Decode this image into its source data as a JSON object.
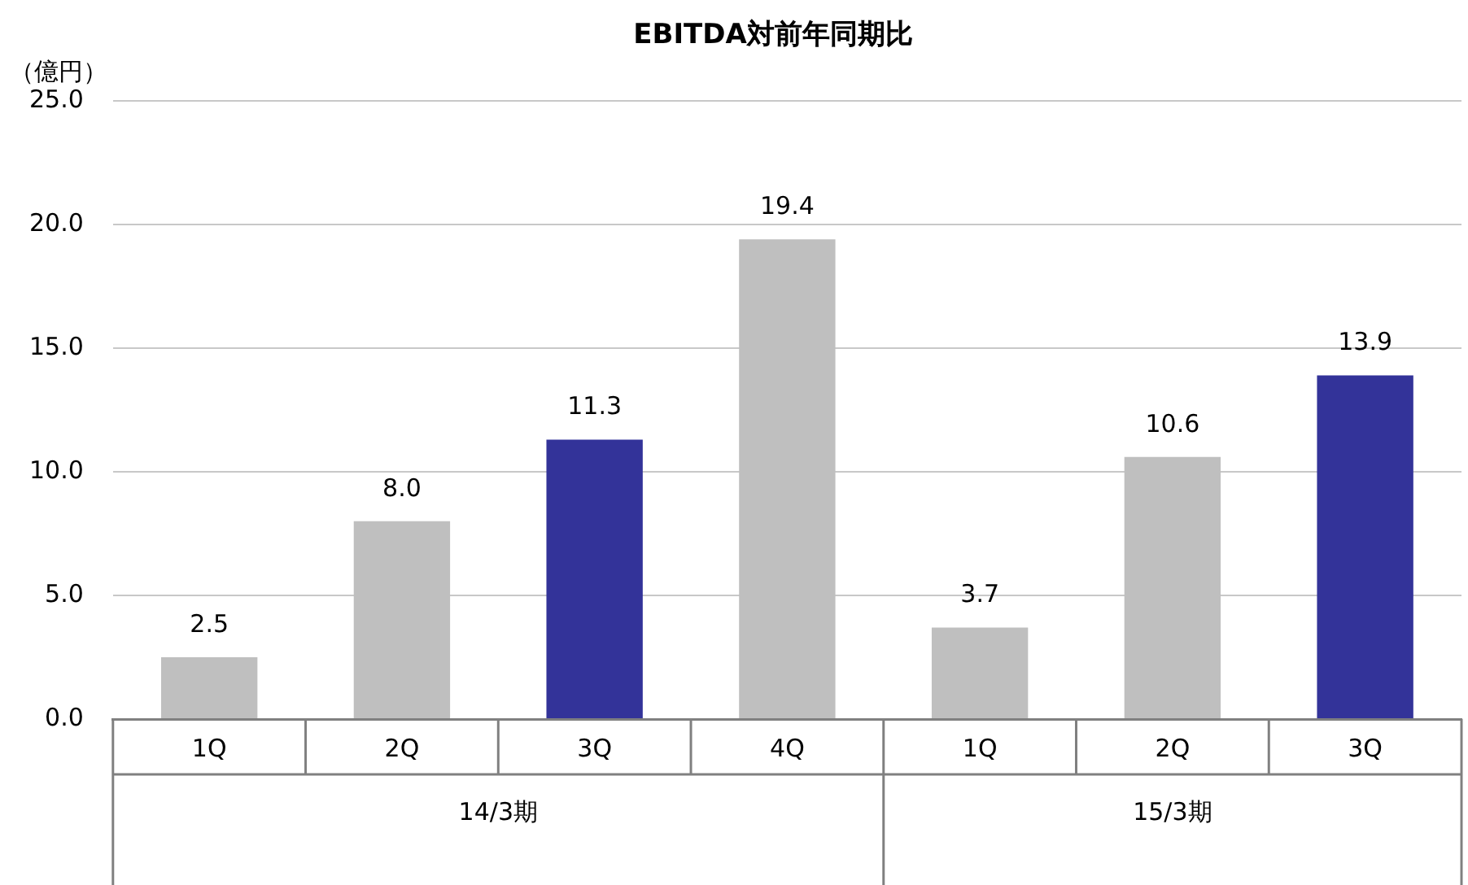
{
  "chart_data": {
    "type": "bar",
    "title": "EBITDA対前年同期比",
    "ylabel": "（億円）",
    "categories": [
      "1Q",
      "2Q",
      "3Q",
      "4Q",
      "1Q",
      "2Q",
      "3Q"
    ],
    "values": [
      2.5,
      8.0,
      11.3,
      19.4,
      3.7,
      10.6,
      13.9
    ],
    "colors": [
      "#bfbfbf",
      "#bfbfbf",
      "#333399",
      "#bfbfbf",
      "#bfbfbf",
      "#bfbfbf",
      "#333399"
    ],
    "ylim": [
      0,
      25
    ],
    "yticks": [
      {
        "value": 0,
        "label": "0.0"
      },
      {
        "value": 5,
        "label": "5.0"
      },
      {
        "value": 10,
        "label": "10.0"
      },
      {
        "value": 15,
        "label": "15.0"
      },
      {
        "value": 20,
        "label": "20.0"
      },
      {
        "value": 25,
        "label": "25.0"
      }
    ],
    "grid": "y",
    "value_labels": [
      "2.5",
      "8.0",
      "11.3",
      "19.4",
      "3.7",
      "10.6",
      "13.9"
    ],
    "annotations": [
      "14/3期",
      "15/3期"
    ]
  }
}
